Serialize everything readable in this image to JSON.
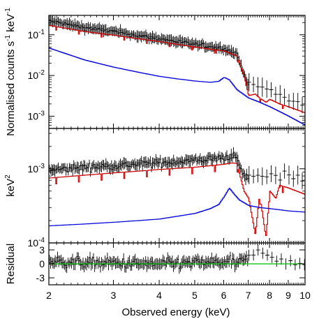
{
  "chart_data": [
    {
      "panel": "top",
      "type": "line",
      "ylabel": "Normalised counts s⁻¹ keV⁻¹",
      "ylabel_parts": [
        "Normalised counts s",
        "-1",
        " keV",
        "-1"
      ],
      "scale": {
        "x": "log",
        "y": "log"
      },
      "xlim": [
        2,
        10
      ],
      "ylim": [
        0.0005,
        0.3
      ],
      "yticks": [
        {
          "value": 0.1,
          "base": "10",
          "exp": "-1"
        },
        {
          "value": 0.01,
          "base": "10",
          "exp": "-2"
        },
        {
          "value": 0.001,
          "base": "10",
          "exp": "-3"
        }
      ],
      "series": [
        {
          "role": "data",
          "style": "crosses",
          "color": "#000000",
          "x": [
            2.0,
            2.5,
            3.0,
            3.5,
            4.0,
            5.0,
            6.0,
            6.5,
            6.8,
            7.0,
            7.3,
            7.5,
            7.8,
            8.0,
            8.5,
            9.0,
            10.0
          ],
          "y": [
            0.22,
            0.15,
            0.12,
            0.095,
            0.08,
            0.058,
            0.046,
            0.034,
            0.012,
            0.0055,
            0.006,
            0.0055,
            0.0048,
            0.0042,
            0.0032,
            0.0026,
            0.0018
          ]
        },
        {
          "role": "model",
          "style": "step",
          "color": "#cc0000",
          "x": [
            2.0,
            2.5,
            3.0,
            3.5,
            4.0,
            5.0,
            6.0,
            6.5,
            6.8,
            7.0,
            7.3,
            7.5,
            7.8,
            8.0,
            8.5,
            9.0,
            10.0
          ],
          "y": [
            0.17,
            0.12,
            0.098,
            0.08,
            0.068,
            0.05,
            0.04,
            0.03,
            0.01,
            0.0032,
            0.0035,
            0.0028,
            0.0022,
            0.0026,
            0.002,
            0.0017,
            0.0012
          ]
        },
        {
          "role": "model",
          "style": "step",
          "color": "#0000dd",
          "x": [
            2.0,
            2.5,
            3.0,
            3.5,
            4.0,
            4.5,
            5.0,
            5.5,
            5.8,
            6.0,
            6.2,
            6.5,
            7.0,
            7.5,
            8.0,
            8.5,
            9.0,
            10.0
          ],
          "y": [
            0.047,
            0.024,
            0.016,
            0.012,
            0.0095,
            0.0082,
            0.0073,
            0.0068,
            0.0072,
            0.009,
            0.0078,
            0.0045,
            0.0028,
            0.0022,
            0.0017,
            0.0013,
            0.001,
            0.0006
          ]
        }
      ]
    },
    {
      "panel": "middle",
      "type": "line",
      "ylabel": "keV²",
      "ylabel_parts": [
        "keV",
        "2"
      ],
      "scale": {
        "x": "log",
        "y": "log"
      },
      "xlim": [
        2,
        10
      ],
      "ylim": [
        0.0001,
        0.0035
      ],
      "yticks": [
        {
          "value": 0.001,
          "base": "10",
          "exp": "-3"
        },
        {
          "value": 0.0001,
          "base": "10",
          "exp": "-4"
        }
      ],
      "series": [
        {
          "role": "data",
          "style": "crosses",
          "color": "#000000",
          "x": [
            2.0,
            2.5,
            3.0,
            3.5,
            4.0,
            5.0,
            5.5,
            6.0,
            6.3,
            6.5,
            6.8,
            7.0,
            7.5,
            8.0,
            8.5,
            9.0,
            10.0
          ],
          "y": [
            0.00095,
            0.00105,
            0.0011,
            0.00115,
            0.0012,
            0.0013,
            0.00135,
            0.0014,
            0.0015,
            0.0014,
            0.0008,
            0.00075,
            0.0008,
            0.00085,
            0.0008,
            0.0008,
            0.0008
          ]
        },
        {
          "role": "model",
          "style": "step",
          "color": "#cc0000",
          "x": [
            2.0,
            2.5,
            3.0,
            3.5,
            4.0,
            5.0,
            5.5,
            6.0,
            6.3,
            6.5,
            6.8,
            7.0,
            7.3,
            7.5,
            7.8,
            8.0,
            8.3,
            8.5,
            9.0,
            10.0
          ],
          "y": [
            0.00075,
            0.00082,
            0.00088,
            0.00093,
            0.00098,
            0.00105,
            0.0011,
            0.00115,
            0.0012,
            0.00118,
            0.0005,
            0.0004,
            0.00013,
            0.00045,
            0.00012,
            0.0005,
            0.0004,
            0.0006,
            0.00055,
            0.00045
          ]
        },
        {
          "role": "model",
          "style": "step",
          "color": "#0000dd",
          "x": [
            2.0,
            2.5,
            3.0,
            3.5,
            4.0,
            4.5,
            5.0,
            5.5,
            5.8,
            6.0,
            6.2,
            6.4,
            6.6,
            7.0,
            7.5,
            8.0,
            8.5,
            9.0,
            10.0
          ],
          "y": [
            0.00017,
            0.00018,
            0.00019,
            0.0002,
            0.00021,
            0.00023,
            0.00025,
            0.00029,
            0.00033,
            0.00042,
            0.00055,
            0.00045,
            0.00038,
            0.00032,
            0.0003,
            0.00029,
            0.00028,
            0.00027,
            0.00026
          ]
        }
      ]
    },
    {
      "panel": "bottom",
      "type": "scatter",
      "ylabel": "Residual",
      "xlabel": "Observed energy (keV)",
      "scale": {
        "x": "log",
        "y": "linear"
      },
      "xlim": [
        2,
        10
      ],
      "ylim": [
        -4.5,
        4.5
      ],
      "yticks": [
        {
          "value": 3,
          "label": "3"
        },
        {
          "value": 0,
          "label": "0"
        },
        {
          "value": -3,
          "label": "-3"
        }
      ],
      "xticks": [
        {
          "value": 2,
          "label": "2"
        },
        {
          "value": 3,
          "label": "3"
        },
        {
          "value": 4,
          "label": "4"
        },
        {
          "value": 5,
          "label": "5"
        },
        {
          "value": 6,
          "label": "6"
        },
        {
          "value": 7,
          "label": "7"
        },
        {
          "value": 8,
          "label": "8"
        },
        {
          "value": 9,
          "label": "9"
        },
        {
          "value": 10,
          "label": "10"
        }
      ],
      "series": [
        {
          "role": "residuals",
          "style": "crosses",
          "color": "#000000",
          "x": [
            2.0,
            2.5,
            3.0,
            3.5,
            4.0,
            5.0,
            6.0,
            6.5,
            7.0,
            7.3,
            7.5,
            8.0,
            8.5,
            9.0,
            9.5,
            10.0
          ],
          "y": [
            0.5,
            0.3,
            0.1,
            0.0,
            -0.1,
            0.2,
            0.4,
            0.2,
            1.0,
            2.0,
            2.5,
            1.5,
            0.8,
            0.5,
            1.0,
            -0.5
          ],
          "scatter": 1.0
        },
        {
          "role": "zero-line",
          "style": "line",
          "color": "#00bb00",
          "x": [
            2,
            10
          ],
          "y": [
            0,
            0
          ]
        }
      ]
    }
  ]
}
